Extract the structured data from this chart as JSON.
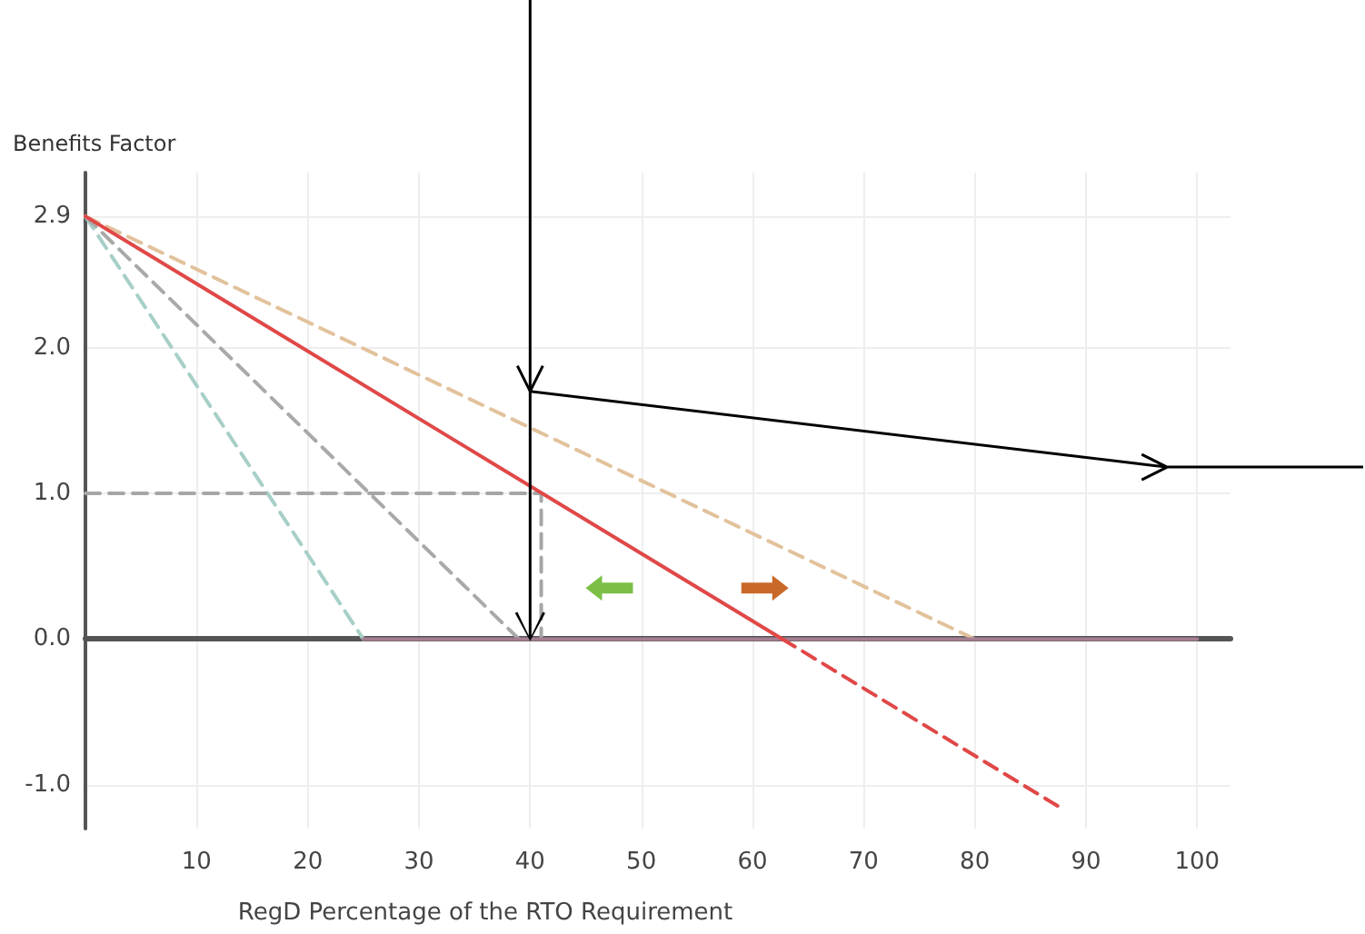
{
  "chart_data": {
    "type": "line",
    "xlabel": "RegD Percentage of the RTO Requirement",
    "ylabel": "Benefits Factor",
    "xlim": [
      0,
      103
    ],
    "ylim": [
      -1.3,
      3.2
    ],
    "xticks": [
      10,
      20,
      30,
      40,
      50,
      60,
      70,
      80,
      90,
      100
    ],
    "yticks": [
      {
        "value": -1,
        "label": "-1.0"
      },
      {
        "value": 0,
        "label": "0.0"
      },
      {
        "value": 1,
        "label": "1.0"
      },
      {
        "value": 2,
        "label": "2.0"
      },
      {
        "value": 2.9,
        "label": "2.9"
      }
    ],
    "grid": true,
    "marker": "none",
    "series": [
      {
        "color": "#a6cfc8",
        "x": [
          0,
          25
        ],
        "values": [
          2.9,
          0
        ],
        "line_style": "dashed"
      },
      {
        "color": "#a8aaa8",
        "x": [
          0,
          39
        ],
        "values": [
          2.9,
          0
        ],
        "line_style": "dashed"
      },
      {
        "color": "#e2c29c",
        "x": [
          0,
          80
        ],
        "values": [
          2.9,
          0
        ],
        "line_style": "dashed"
      },
      {
        "color": "#a6a6a6",
        "x": [
          0,
          41,
          41
        ],
        "values": [
          1,
          1,
          0
        ],
        "line_style": "dashed"
      },
      {
        "color": "#a47e92",
        "x": [
          25,
          100
        ],
        "values": [
          0,
          0
        ],
        "line_style": "solid"
      },
      {
        "color": "#e04848",
        "x": [
          0,
          62.7
        ],
        "values": [
          2.9,
          0
        ],
        "line_style": "solid"
      },
      {
        "color": "#e04848",
        "x": [
          62.7,
          88
        ],
        "values": [
          0,
          -1.17
        ],
        "line_style": "dashed"
      }
    ]
  }
}
